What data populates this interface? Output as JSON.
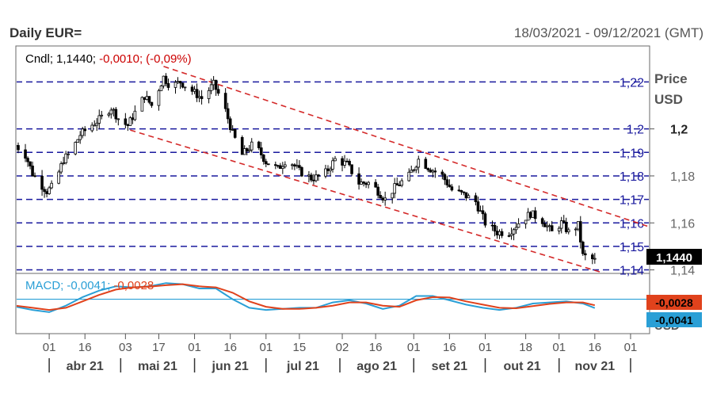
{
  "header": {
    "title": "Daily EUR=",
    "date_range": "18/03/2021 - 09/12/2021 (GMT)"
  },
  "colors": {
    "candle": "#000000",
    "channel": "#d42a2a",
    "hline": "#1a1a9e",
    "hline_label": "#1a1a9e",
    "macd": "#2a9fd6",
    "signal": "#e0421c",
    "zero_line": "#2a9fd6",
    "header_neg": "#cc0000"
  },
  "chart_data": [
    {
      "type": "candlestick",
      "legend": {
        "name": "Cndl;",
        "last": "1,1440;",
        "change": "-0,0010;",
        "pct": "(-0,09%)"
      },
      "yaxis_title": "Price",
      "yaxis_unit": "USD",
      "ylim": [
        1.1385,
        1.2353
      ],
      "y_ticks": [
        "1,2",
        "1,18",
        "1,16",
        "1,14"
      ],
      "current_price": "1,1440",
      "horizontal_levels": [
        {
          "value": 1.22,
          "label": "1,22"
        },
        {
          "value": 1.2,
          "label": "1,2"
        },
        {
          "value": 1.19,
          "label": "1,19"
        },
        {
          "value": 1.18,
          "label": "1,18"
        },
        {
          "value": 1.17,
          "label": "1,17"
        },
        {
          "value": 1.16,
          "label": "1,16"
        },
        {
          "value": 1.15,
          "label": "1,15"
        },
        {
          "value": 1.14,
          "label": "1,14"
        }
      ],
      "channel_lines": [
        {
          "x1": "2021-05-19",
          "y1": 1.2266,
          "x2": "2021-12-09",
          "y2": 1.1583
        },
        {
          "x1": "2021-05-05",
          "y1": 1.1995,
          "x2": "2021-11-30",
          "y2": 1.1355
        }
      ],
      "price_path": [
        [
          "2021-03-18",
          1.193
        ],
        [
          "2021-03-22",
          1.189
        ],
        [
          "2021-03-25",
          1.181
        ],
        [
          "2021-03-28",
          1.177
        ],
        [
          "2021-03-31",
          1.1735
        ],
        [
          "2021-04-03",
          1.176
        ],
        [
          "2021-04-07",
          1.187
        ],
        [
          "2021-04-10",
          1.19
        ],
        [
          "2021-04-14",
          1.1975
        ],
        [
          "2021-04-18",
          1.201
        ],
        [
          "2021-04-22",
          1.204
        ],
        [
          "2021-04-27",
          1.209
        ],
        [
          "2021-05-01",
          1.203
        ],
        [
          "2021-05-04",
          1.2015
        ],
        [
          "2021-05-07",
          1.207
        ],
        [
          "2021-05-11",
          1.214
        ],
        [
          "2021-05-14",
          1.21
        ],
        [
          "2021-05-19",
          1.222
        ],
        [
          "2021-05-22",
          1.218
        ],
        [
          "2021-05-26",
          1.22
        ],
        [
          "2021-05-30",
          1.217
        ],
        [
          "2021-06-04",
          1.213
        ],
        [
          "2021-06-09",
          1.219
        ],
        [
          "2021-06-13",
          1.211
        ],
        [
          "2021-06-17",
          1.198
        ],
        [
          "2021-06-21",
          1.189
        ],
        [
          "2021-06-26",
          1.194
        ],
        [
          "2021-07-01",
          1.186
        ],
        [
          "2021-07-06",
          1.183
        ],
        [
          "2021-07-10",
          1.1875
        ],
        [
          "2021-07-15",
          1.182
        ],
        [
          "2021-07-20",
          1.179
        ],
        [
          "2021-07-25",
          1.18
        ],
        [
          "2021-07-30",
          1.187
        ],
        [
          "2021-08-04",
          1.185
        ],
        [
          "2021-08-09",
          1.177
        ],
        [
          "2021-08-14",
          1.177
        ],
        [
          "2021-08-20",
          1.17
        ],
        [
          "2021-08-24",
          1.175
        ],
        [
          "2021-08-30",
          1.18
        ],
        [
          "2021-09-03",
          1.187
        ],
        [
          "2021-09-08",
          1.183
        ],
        [
          "2021-09-13",
          1.18
        ],
        [
          "2021-09-17",
          1.174
        ],
        [
          "2021-09-22",
          1.172
        ],
        [
          "2021-09-27",
          1.169
        ],
        [
          "2021-10-01",
          1.16
        ],
        [
          "2021-10-06",
          1.156
        ],
        [
          "2021-10-11",
          1.156
        ],
        [
          "2021-10-15",
          1.16
        ],
        [
          "2021-10-20",
          1.164
        ],
        [
          "2021-10-25",
          1.161
        ],
        [
          "2021-10-29",
          1.156
        ],
        [
          "2021-11-02",
          1.16
        ],
        [
          "2021-11-05",
          1.156
        ],
        [
          "2021-11-09",
          1.159
        ],
        [
          "2021-11-11",
          1.146
        ],
        [
          "2021-11-14",
          1.145
        ],
        [
          "2021-11-16",
          1.144
        ]
      ],
      "candle_color_note": "black"
    },
    {
      "type": "line",
      "legend": {
        "name": "MACD;",
        "macd": "-0,0041;",
        "signal": "-0,0028"
      },
      "yaxis_unit": "USD",
      "ylim": [
        -0.016,
        0.012
      ],
      "zero_line": 0,
      "current_values": {
        "macd": "-0,0041",
        "signal": "-0,0028"
      },
      "series": [
        {
          "key": "macd",
          "values": [
            [
              "2021-03-18",
              -0.0035
            ],
            [
              "2021-03-25",
              -0.005
            ],
            [
              "2021-04-01",
              -0.006
            ],
            [
              "2021-04-08",
              -0.003
            ],
            [
              "2021-04-15",
              0.001
            ],
            [
              "2021-04-22",
              0.004
            ],
            [
              "2021-04-29",
              0.006
            ],
            [
              "2021-05-06",
              0.0055
            ],
            [
              "2021-05-13",
              0.006
            ],
            [
              "2021-05-20",
              0.0075
            ],
            [
              "2021-05-27",
              0.007
            ],
            [
              "2021-06-03",
              0.005
            ],
            [
              "2021-06-10",
              0.005
            ],
            [
              "2021-06-17",
              0.0
            ],
            [
              "2021-06-24",
              -0.004
            ],
            [
              "2021-07-01",
              -0.005
            ],
            [
              "2021-07-08",
              -0.0045
            ],
            [
              "2021-07-15",
              -0.004
            ],
            [
              "2021-07-22",
              -0.004
            ],
            [
              "2021-07-29",
              -0.0015
            ],
            [
              "2021-08-05",
              -0.0005
            ],
            [
              "2021-08-12",
              -0.002
            ],
            [
              "2021-08-19",
              -0.0045
            ],
            [
              "2021-08-26",
              -0.003
            ],
            [
              "2021-09-02",
              0.0015
            ],
            [
              "2021-09-09",
              0.0015
            ],
            [
              "2021-09-16",
              -0.0005
            ],
            [
              "2021-09-23",
              -0.0025
            ],
            [
              "2021-09-30",
              -0.004
            ],
            [
              "2021-10-07",
              -0.005
            ],
            [
              "2021-10-14",
              -0.004
            ],
            [
              "2021-10-21",
              -0.002
            ],
            [
              "2021-10-28",
              -0.0015
            ],
            [
              "2021-11-04",
              -0.001
            ],
            [
              "2021-11-11",
              -0.002
            ],
            [
              "2021-11-16",
              -0.0041
            ]
          ]
        },
        {
          "key": "signal",
          "values": [
            [
              "2021-03-18",
              -0.003
            ],
            [
              "2021-03-25",
              -0.004
            ],
            [
              "2021-04-01",
              -0.005
            ],
            [
              "2021-04-08",
              -0.004
            ],
            [
              "2021-04-15",
              -0.001
            ],
            [
              "2021-04-22",
              0.002
            ],
            [
              "2021-04-29",
              0.0045
            ],
            [
              "2021-05-06",
              0.0055
            ],
            [
              "2021-05-13",
              0.0058
            ],
            [
              "2021-05-20",
              0.0065
            ],
            [
              "2021-05-27",
              0.007
            ],
            [
              "2021-06-03",
              0.006
            ],
            [
              "2021-06-10",
              0.0055
            ],
            [
              "2021-06-17",
              0.003
            ],
            [
              "2021-06-24",
              -0.001
            ],
            [
              "2021-07-01",
              -0.0035
            ],
            [
              "2021-07-08",
              -0.0045
            ],
            [
              "2021-07-15",
              -0.0045
            ],
            [
              "2021-07-22",
              -0.004
            ],
            [
              "2021-07-29",
              -0.003
            ],
            [
              "2021-08-05",
              -0.0015
            ],
            [
              "2021-08-12",
              -0.0015
            ],
            [
              "2021-08-19",
              -0.003
            ],
            [
              "2021-08-26",
              -0.0035
            ],
            [
              "2021-09-02",
              -0.0005
            ],
            [
              "2021-09-09",
              0.001
            ],
            [
              "2021-09-16",
              0.0008
            ],
            [
              "2021-09-23",
              -0.001
            ],
            [
              "2021-09-30",
              -0.0025
            ],
            [
              "2021-10-07",
              -0.004
            ],
            [
              "2021-10-14",
              -0.0042
            ],
            [
              "2021-10-21",
              -0.0032
            ],
            [
              "2021-10-28",
              -0.0022
            ],
            [
              "2021-11-04",
              -0.0015
            ],
            [
              "2021-11-11",
              -0.0015
            ],
            [
              "2021-11-16",
              -0.0028
            ]
          ]
        }
      ]
    }
  ],
  "x_axis": {
    "start_date": "2021-03-18",
    "end_date": "2021-12-09",
    "day_ticks": [
      {
        "date": "2021-04-01",
        "label": "01"
      },
      {
        "date": "2021-04-16",
        "label": "16"
      },
      {
        "date": "2021-05-03",
        "label": "03"
      },
      {
        "date": "2021-05-17",
        "label": "17"
      },
      {
        "date": "2021-06-01",
        "label": "01"
      },
      {
        "date": "2021-06-16",
        "label": "16"
      },
      {
        "date": "2021-07-01",
        "label": "01"
      },
      {
        "date": "2021-07-15",
        "label": "15"
      },
      {
        "date": "2021-08-02",
        "label": "02"
      },
      {
        "date": "2021-08-16",
        "label": "16"
      },
      {
        "date": "2021-09-01",
        "label": "01"
      },
      {
        "date": "2021-09-16",
        "label": "16"
      },
      {
        "date": "2021-10-01",
        "label": "01"
      },
      {
        "date": "2021-10-18",
        "label": "18"
      },
      {
        "date": "2021-11-01",
        "label": "01"
      },
      {
        "date": "2021-11-16",
        "label": "16"
      },
      {
        "date": "2021-12-01",
        "label": "01"
      }
    ],
    "months": [
      {
        "label": "abr 21",
        "start": "2021-04-01"
      },
      {
        "label": "mai 21",
        "start": "2021-05-01"
      },
      {
        "label": "jun 21",
        "start": "2021-06-01"
      },
      {
        "label": "jul 21",
        "start": "2021-07-01"
      },
      {
        "label": "ago 21",
        "start": "2021-08-01"
      },
      {
        "label": "set 21",
        "start": "2021-09-01"
      },
      {
        "label": "out 21",
        "start": "2021-10-01"
      },
      {
        "label": "nov 21",
        "start": "2021-11-01"
      }
    ],
    "end_marker": "2021-12-01"
  }
}
